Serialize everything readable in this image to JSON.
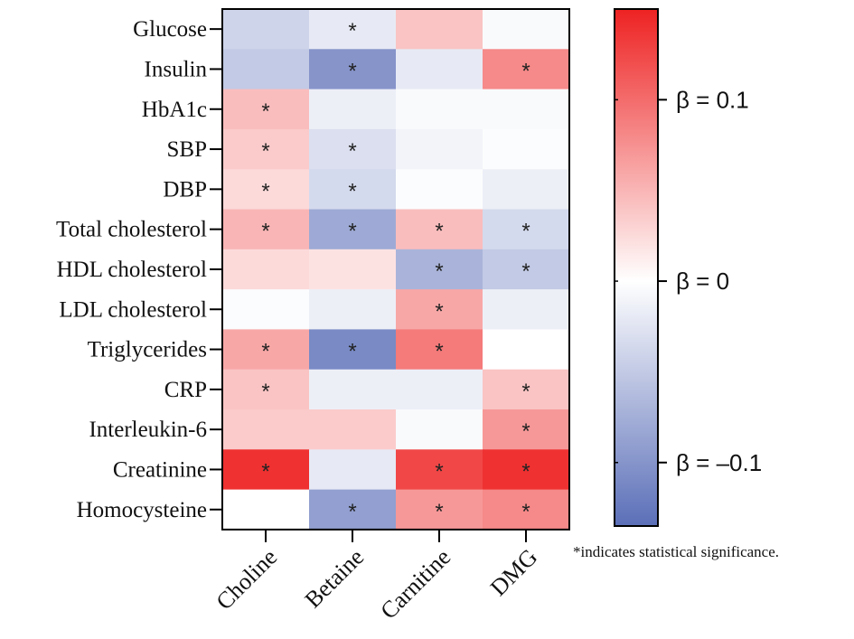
{
  "chart_data": {
    "type": "heatmap",
    "rows": [
      "Glucose",
      "Insulin",
      "HbA1c",
      "SBP",
      "DBP",
      "Total cholesterol",
      "HDL cholesterol",
      "LDL cholesterol",
      "Triglycerides",
      "CRP",
      "Interleukin-6",
      "Creatinine",
      "Homocysteine"
    ],
    "columns": [
      "Choline",
      "Betaine",
      "Carnitine",
      "DMG"
    ],
    "values": [
      [
        -0.04,
        -0.02,
        0.04,
        -0.005
      ],
      [
        -0.05,
        -0.1,
        -0.02,
        0.08
      ],
      [
        0.045,
        -0.015,
        -0.005,
        -0.005
      ],
      [
        0.035,
        -0.03,
        -0.01,
        -0.003
      ],
      [
        0.025,
        -0.035,
        -0.003,
        -0.015
      ],
      [
        0.05,
        -0.08,
        0.045,
        -0.035
      ],
      [
        0.025,
        0.02,
        -0.07,
        -0.05
      ],
      [
        -0.003,
        -0.015,
        0.06,
        -0.015
      ],
      [
        0.06,
        -0.11,
        0.09,
        0.0
      ],
      [
        0.04,
        -0.015,
        -0.015,
        0.04
      ],
      [
        0.035,
        0.035,
        -0.005,
        0.07
      ],
      [
        0.14,
        -0.02,
        0.125,
        0.14
      ],
      [
        0.0,
        -0.09,
        0.07,
        0.08
      ]
    ],
    "significant": [
      [
        false,
        true,
        false,
        false
      ],
      [
        false,
        true,
        false,
        true
      ],
      [
        true,
        false,
        false,
        false
      ],
      [
        true,
        true,
        false,
        false
      ],
      [
        true,
        true,
        false,
        false
      ],
      [
        true,
        true,
        true,
        true
      ],
      [
        false,
        false,
        true,
        true
      ],
      [
        false,
        false,
        true,
        false
      ],
      [
        true,
        true,
        true,
        false
      ],
      [
        true,
        false,
        false,
        true
      ],
      [
        false,
        false,
        false,
        true
      ],
      [
        true,
        false,
        true,
        true
      ],
      [
        false,
        true,
        true,
        true
      ]
    ],
    "significance_marker": "*",
    "colorbar": {
      "range": [
        -0.135,
        0.15
      ],
      "colors": {
        "low": "#5b6fb8",
        "mid": "#ffffff",
        "high": "#ee2222"
      },
      "ticks": [
        {
          "value": 0.1,
          "label": "β = 0.1"
        },
        {
          "value": 0.0,
          "label": "β = 0"
        },
        {
          "value": -0.1,
          "label": "β = –0.1"
        }
      ]
    },
    "footnote": "*indicates statistical significance."
  }
}
